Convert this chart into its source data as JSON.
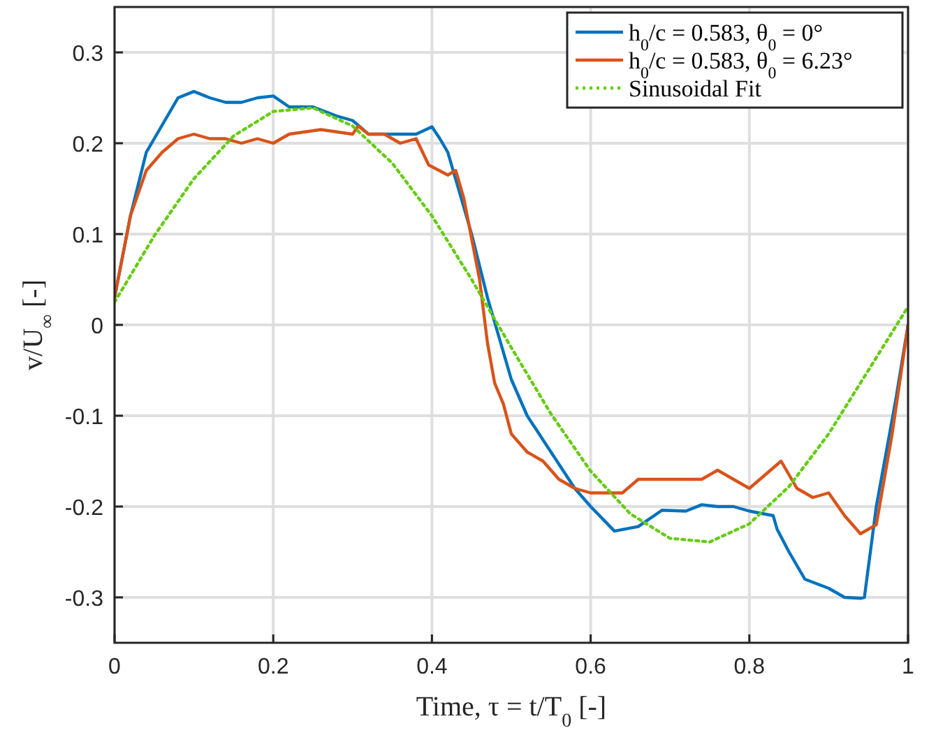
{
  "chart_data": {
    "type": "line",
    "xlabel": "Time, τ = t/T$_{0}$ [-]",
    "ylabel": "v/U$_{∞}$ [-]",
    "xlim": [
      0,
      1
    ],
    "ylim": [
      -0.35,
      0.35
    ],
    "xticks": [
      0,
      0.2,
      0.4,
      0.6,
      0.8,
      1
    ],
    "yticks": [
      -0.3,
      -0.2,
      -0.1,
      0,
      0.1,
      0.2,
      0.3
    ],
    "grid": true,
    "legend": "top right",
    "series": [
      {
        "name": "h$_{0}$/c = 0.583, θ$_{0}$ = 0°",
        "color": "#0072bd",
        "line_style": "solid",
        "x": [
          0,
          0.02,
          0.04,
          0.06,
          0.08,
          0.1,
          0.12,
          0.14,
          0.16,
          0.18,
          0.2,
          0.22,
          0.25,
          0.28,
          0.3,
          0.32,
          0.35,
          0.38,
          0.4,
          0.41,
          0.42,
          0.43,
          0.45,
          0.47,
          0.48,
          0.5,
          0.52,
          0.55,
          0.58,
          0.6,
          0.63,
          0.66,
          0.69,
          0.72,
          0.74,
          0.76,
          0.78,
          0.8,
          0.83,
          0.835,
          0.85,
          0.87,
          0.9,
          0.92,
          0.94,
          0.945,
          0.96,
          0.985,
          1
        ],
        "values": [
          0.03,
          0.12,
          0.19,
          0.22,
          0.25,
          0.257,
          0.25,
          0.245,
          0.245,
          0.25,
          0.252,
          0.24,
          0.24,
          0.23,
          0.225,
          0.21,
          0.21,
          0.21,
          0.218,
          0.205,
          0.19,
          0.16,
          0.1,
          0.03,
          0,
          -0.06,
          -0.1,
          -0.14,
          -0.18,
          -0.2,
          -0.227,
          -0.222,
          -0.204,
          -0.205,
          -0.198,
          -0.2,
          -0.2,
          -0.205,
          -0.21,
          -0.225,
          -0.25,
          -0.28,
          -0.29,
          -0.3,
          -0.301,
          -0.3,
          -0.2,
          -0.08,
          0.0
        ]
      },
      {
        "name": "h$_{0}$/c = 0.583, θ$_{0}$ = 6.23°",
        "color": "#d95319",
        "line_style": "solid",
        "x": [
          0,
          0.02,
          0.04,
          0.06,
          0.08,
          0.1,
          0.12,
          0.14,
          0.16,
          0.18,
          0.2,
          0.22,
          0.26,
          0.3,
          0.307,
          0.32,
          0.34,
          0.36,
          0.38,
          0.396,
          0.42,
          0.43,
          0.44,
          0.46,
          0.47,
          0.479,
          0.49,
          0.5,
          0.52,
          0.54,
          0.56,
          0.58,
          0.6,
          0.62,
          0.64,
          0.66,
          0.7,
          0.74,
          0.76,
          0.78,
          0.8,
          0.82,
          0.84,
          0.86,
          0.88,
          0.9,
          0.92,
          0.94,
          0.96,
          0.98,
          1
        ],
        "values": [
          0.03,
          0.12,
          0.17,
          0.19,
          0.205,
          0.21,
          0.205,
          0.205,
          0.2,
          0.205,
          0.2,
          0.21,
          0.215,
          0.21,
          0.219,
          0.21,
          0.21,
          0.2,
          0.205,
          0.176,
          0.165,
          0.17,
          0.14,
          0.05,
          -0.02,
          -0.064,
          -0.087,
          -0.12,
          -0.14,
          -0.15,
          -0.17,
          -0.18,
          -0.185,
          -0.185,
          -0.185,
          -0.17,
          -0.17,
          -0.17,
          -0.16,
          -0.17,
          -0.18,
          -0.165,
          -0.15,
          -0.18,
          -0.19,
          -0.185,
          -0.21,
          -0.23,
          -0.22,
          -0.12,
          0.0
        ]
      },
      {
        "name": "Sinusoidal Fit",
        "color": "#66cc11",
        "line_style": "dotted",
        "x": [
          0,
          0.05,
          0.1,
          0.15,
          0.2,
          0.25,
          0.3,
          0.35,
          0.4,
          0.45,
          0.5,
          0.55,
          0.6,
          0.65,
          0.7,
          0.75,
          0.8,
          0.85,
          0.9,
          0.95,
          1
        ],
        "values": [
          0.025,
          0.098,
          0.161,
          0.208,
          0.235,
          0.239,
          0.219,
          0.178,
          0.12,
          0.05,
          -0.025,
          -0.098,
          -0.161,
          -0.208,
          -0.235,
          -0.239,
          -0.219,
          -0.178,
          -0.12,
          -0.05,
          0.02
        ]
      }
    ]
  }
}
